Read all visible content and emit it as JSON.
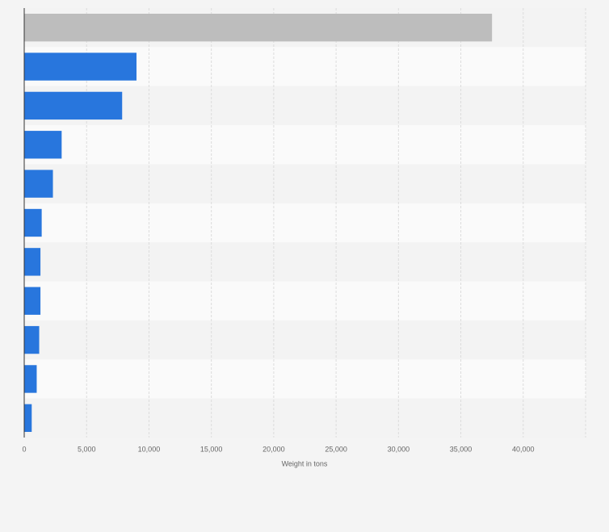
{
  "chart_data": {
    "type": "barh",
    "categories": [
      null,
      null,
      null,
      null,
      null,
      null,
      null,
      null,
      null,
      null,
      null
    ],
    "values": [
      37500,
      9000,
      7850,
      3000,
      2300,
      1400,
      1300,
      1300,
      1200,
      1000,
      600
    ],
    "colors": [
      "#bdbdbd",
      "#2876dd",
      "#2876dd",
      "#2876dd",
      "#2876dd",
      "#2876dd",
      "#2876dd",
      "#2876dd",
      "#2876dd",
      "#2876dd",
      "#2876dd"
    ],
    "xlabel": "Weight in tons",
    "xlim": [
      0,
      45000
    ],
    "xticks": [
      0,
      {
        "value": 5000,
        "label": "5,000"
      },
      {
        "value": 10000,
        "label": "10,000"
      },
      {
        "value": 15000,
        "label": "15,000"
      },
      {
        "value": 20000,
        "label": "20,000"
      },
      {
        "value": 25000,
        "label": "25,000"
      },
      {
        "value": 30000,
        "label": "30,000"
      },
      {
        "value": 35000,
        "label": "35,000"
      },
      {
        "value": 40000,
        "label": "40,000"
      }
    ],
    "grid": true
  }
}
